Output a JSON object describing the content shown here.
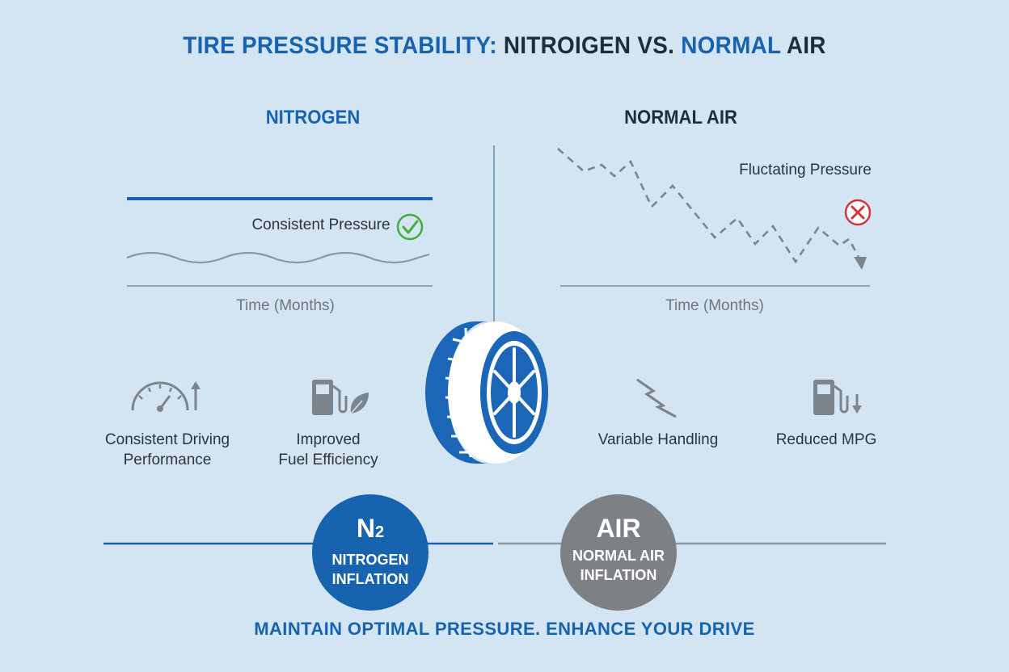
{
  "title": {
    "part1": "TIRE PRESSURE STABILITY:",
    "part2": "NITROIGEN VS.",
    "part3": "NORMAL",
    "part4": "AIR"
  },
  "nitrogen": {
    "heading": "NITROGEN",
    "pressure_label": "Consistent Pressure",
    "axis_label": "Time (Months)",
    "benefits": [
      {
        "line1": "Consistent Driving",
        "line2": "Performance",
        "icon": "speedometer-icon"
      },
      {
        "line1": "Improved",
        "line2": "Fuel Efficiency",
        "icon": "fuel-pump-leaf-icon"
      }
    ],
    "badge": {
      "symbol": "N",
      "subscript": "2",
      "line1": "NITROGEN",
      "line2": "INFLATION"
    },
    "color": "#1763b0"
  },
  "air": {
    "heading": "NORMAL AIR",
    "pressure_label": "Fluctating Pressure",
    "axis_label": "Time (Months)",
    "benefits": [
      {
        "line1": "Variable Handling",
        "icon": "lightning-icon"
      },
      {
        "line1": "Reduced MPG",
        "icon": "fuel-pump-down-icon"
      }
    ],
    "badge": {
      "symbol": "AIR",
      "line1": "NORMAL AIR",
      "line2": "INFLATION"
    },
    "color": "#7d8185"
  },
  "tagline": "MAINTAIN OPTIMAL PRESSURE. ENHANCE YOUR DRIVE"
}
